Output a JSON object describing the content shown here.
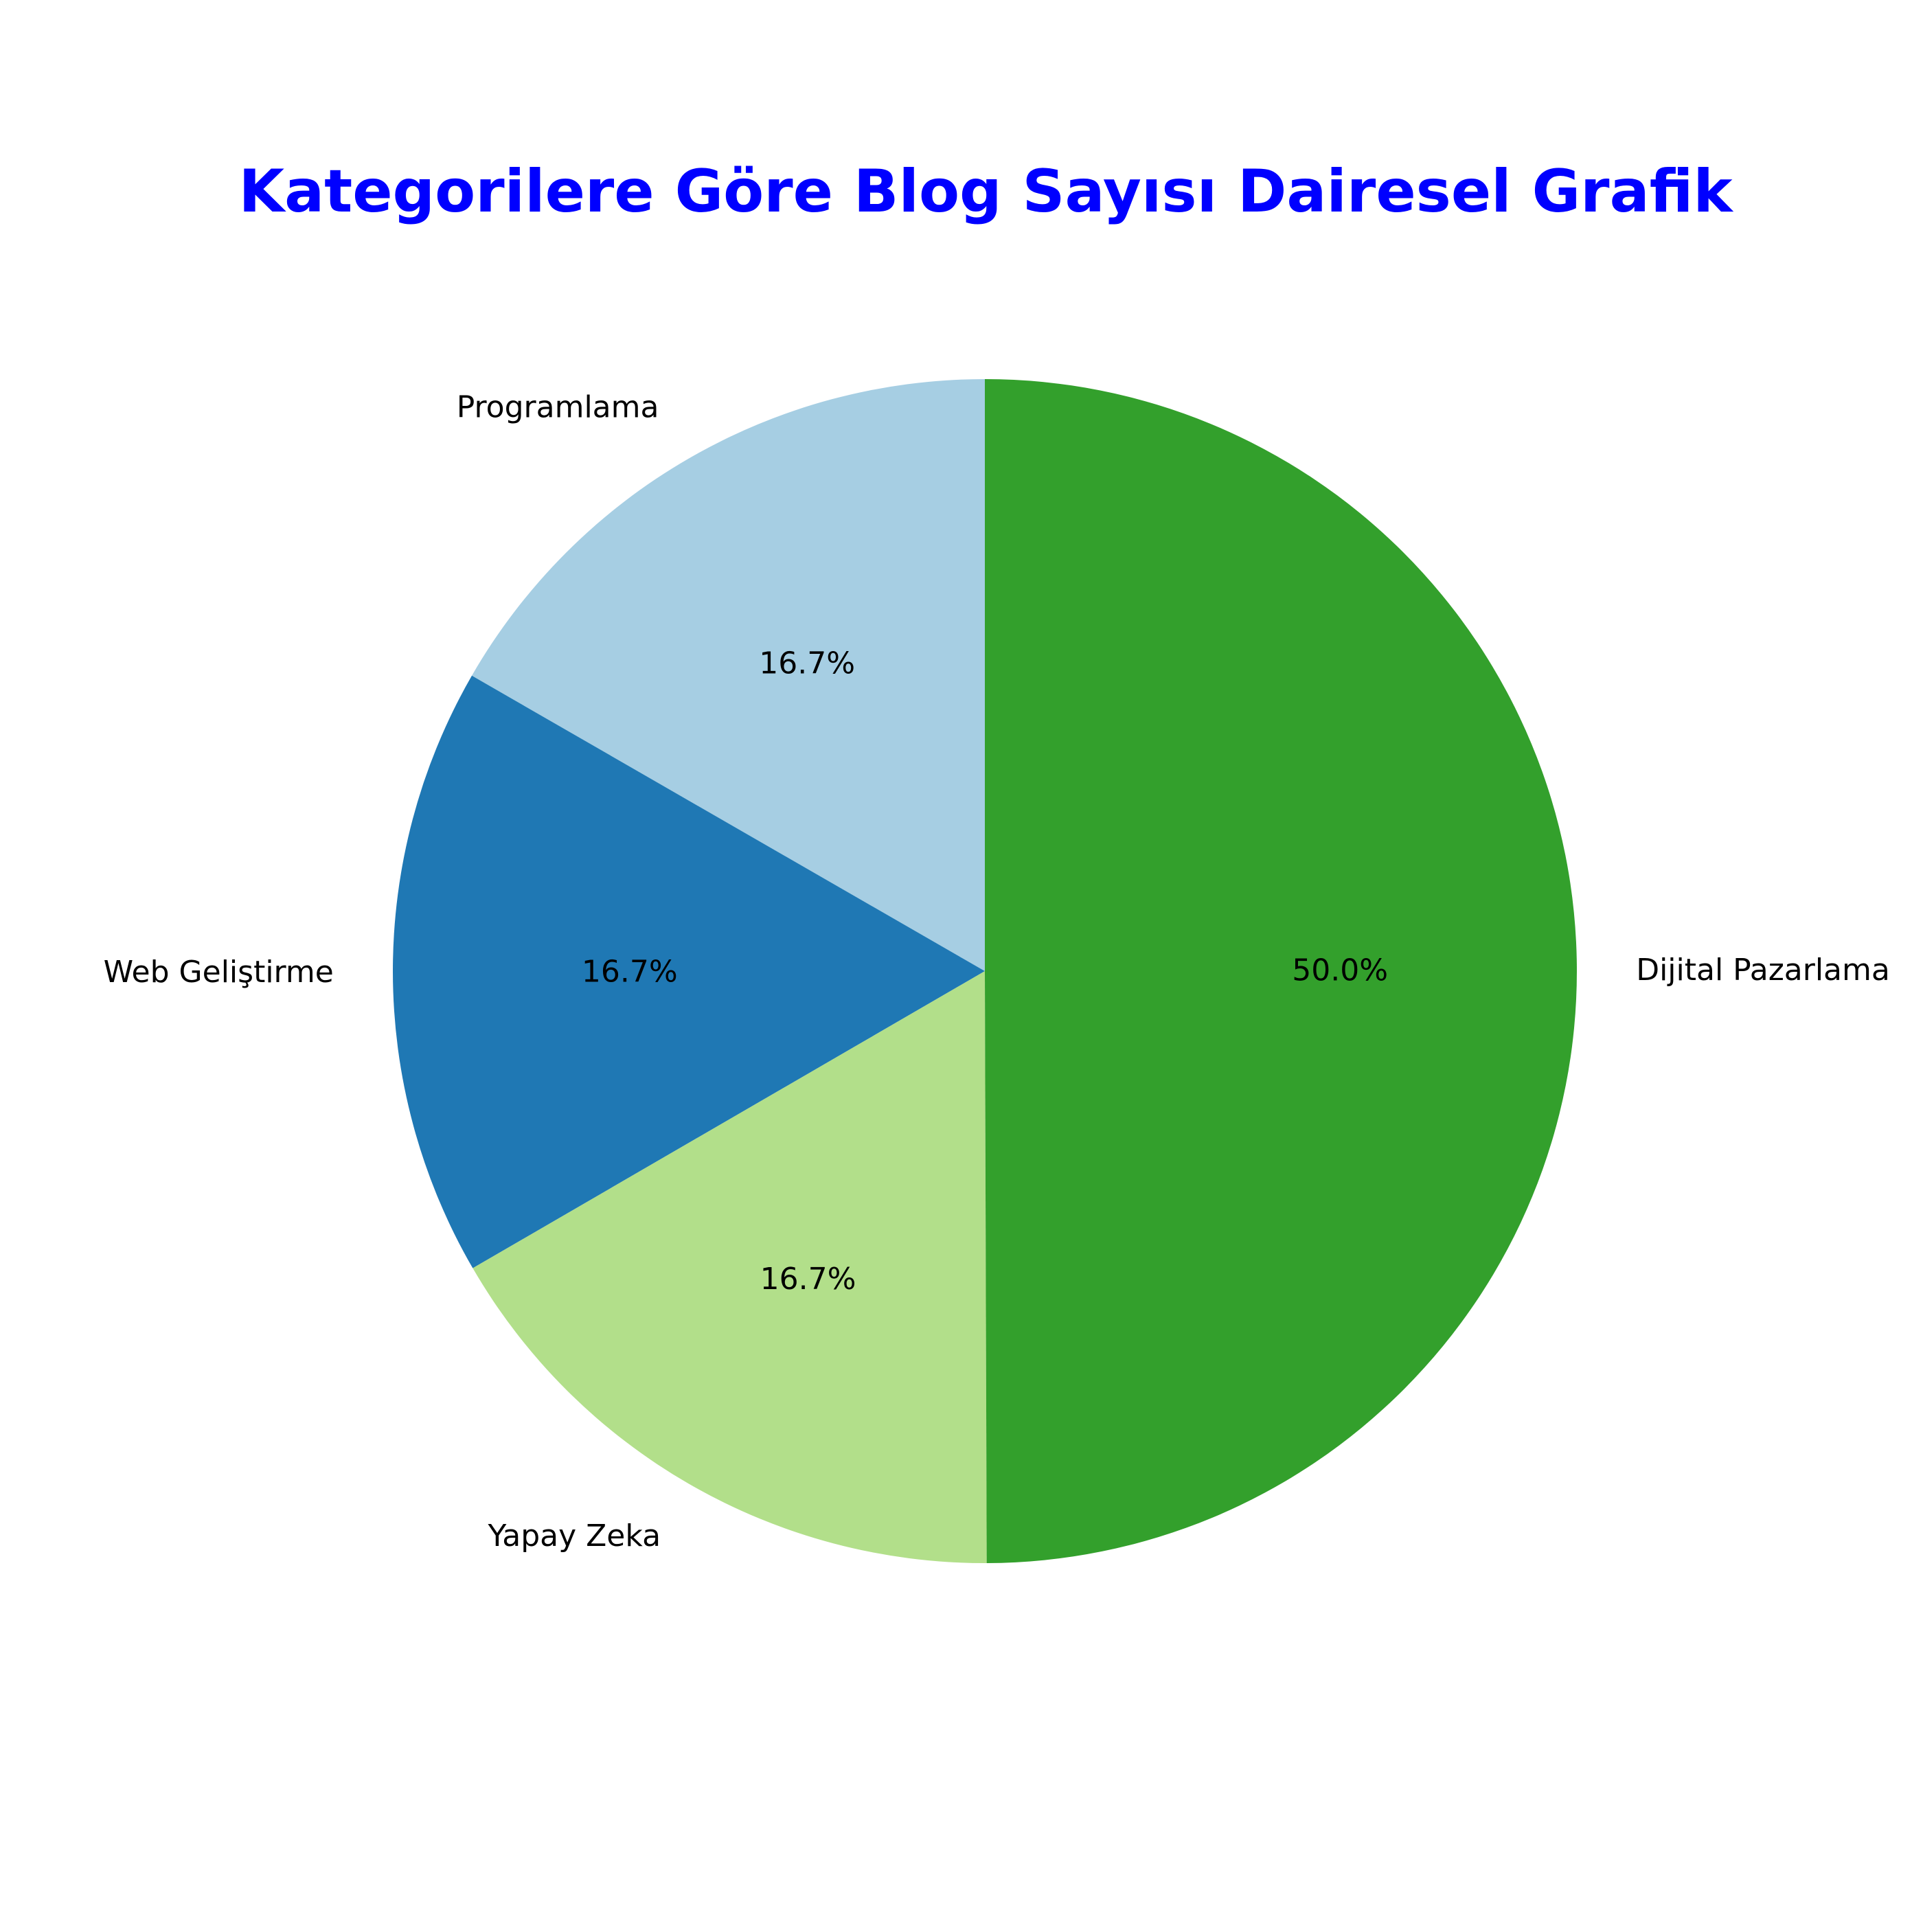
{
  "chart_data": {
    "type": "pie",
    "title": "Kategorilere Göre Blog Sayısı Dairesel Grafik",
    "title_color": "#0000ff",
    "start_angle_deg": 90,
    "direction": "counterclockwise",
    "slices": [
      {
        "label": "Programlama",
        "value": 16.7,
        "pct_label": "16.7%",
        "color": "#a6cee3"
      },
      {
        "label": "Web Geliştirme",
        "value": 16.7,
        "pct_label": "16.7%",
        "color": "#1f78b4"
      },
      {
        "label": "Yapay Zeka",
        "value": 16.7,
        "pct_label": "16.7%",
        "color": "#b2df8a"
      },
      {
        "label": "Dijital Pazarlama",
        "value": 50.0,
        "pct_label": "50.0%",
        "color": "#33a02c"
      }
    ]
  }
}
